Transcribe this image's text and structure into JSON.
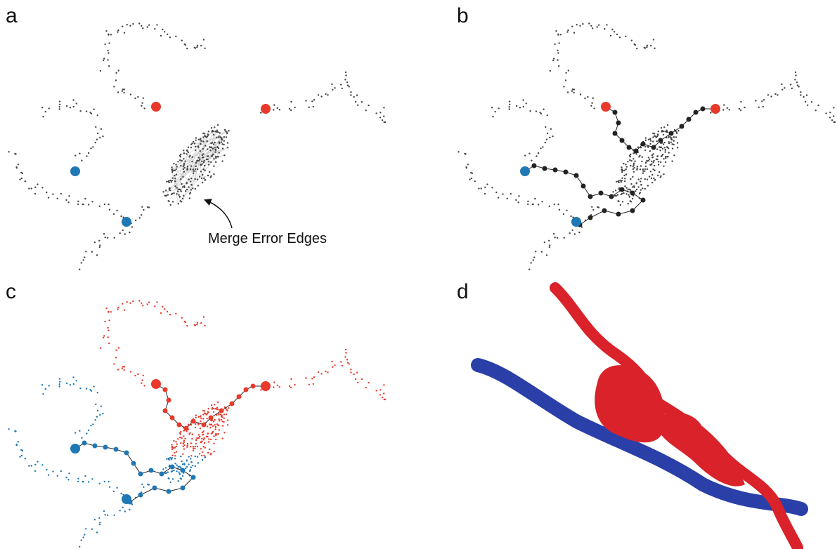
{
  "panels": [
    {
      "label": "a"
    },
    {
      "label": "b"
    },
    {
      "label": "c"
    },
    {
      "label": "d"
    }
  ],
  "annotation": "Merge Error Edges"
}
